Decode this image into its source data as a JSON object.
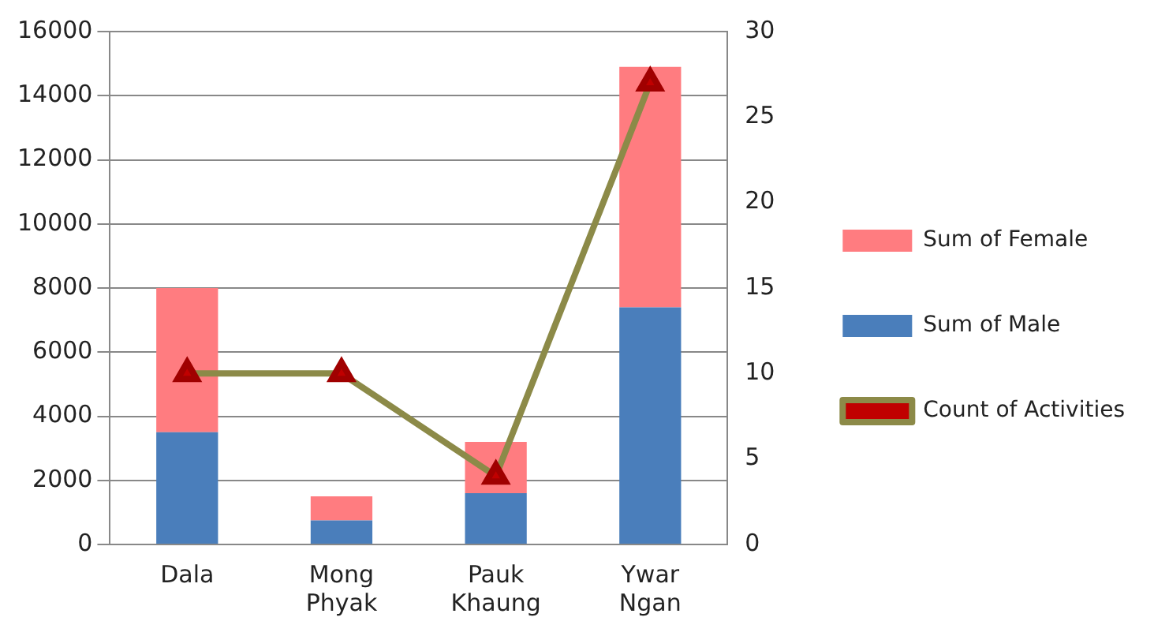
{
  "chart_data": {
    "type": "bar",
    "categories": [
      "Dala",
      "Mong Phyak",
      "Pauk Khaung",
      "Ywar Ngan"
    ],
    "stacked": true,
    "series": [
      {
        "name": "Sum of Male",
        "color": "#4a7ebb",
        "values": [
          3500,
          750,
          1600,
          7400
        ]
      },
      {
        "name": "Sum of Female",
        "color": "#ff7c80",
        "values": [
          4500,
          750,
          1600,
          7500
        ]
      },
      {
        "name": "Count of Activities",
        "type": "line",
        "axis": "y2",
        "color": "#8c8a48",
        "values": [
          10,
          10,
          4,
          27
        ]
      }
    ],
    "ylim": [
      0,
      16000
    ],
    "yticks": [
      0,
      2000,
      4000,
      6000,
      8000,
      10000,
      12000,
      14000,
      16000
    ],
    "y2lim": [
      0,
      30
    ],
    "y2ticks": [
      0,
      5,
      10,
      15,
      20,
      25,
      30
    ],
    "grid": "y",
    "legend": "right",
    "marker": "triangle"
  }
}
